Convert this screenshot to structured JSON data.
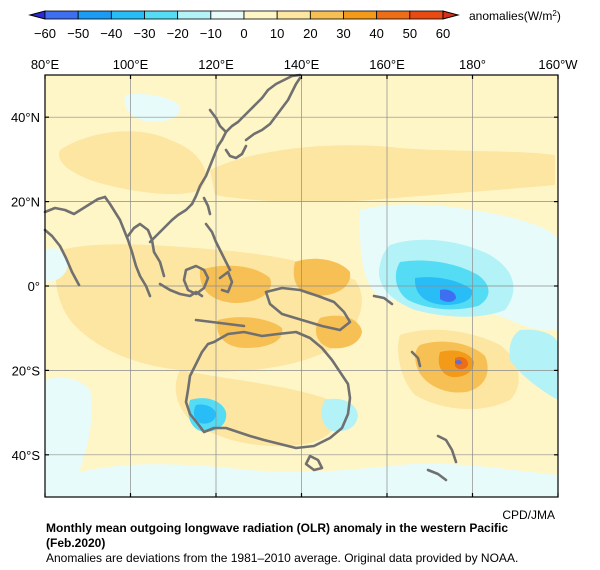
{
  "colorbar": {
    "ticks": [
      "−60",
      "−50",
      "−40",
      "−30",
      "−20",
      "−10",
      "0",
      "10",
      "20",
      "30",
      "40",
      "50",
      "60"
    ],
    "bins": [
      {
        "range": "<-60",
        "color": "#2a2ad8"
      },
      {
        "range": "-60..-50",
        "color": "#3d6ff0"
      },
      {
        "range": "-50..-40",
        "color": "#1a9cf5"
      },
      {
        "range": "-40..-30",
        "color": "#28bdf7"
      },
      {
        "range": "-30..-20",
        "color": "#55dcf5"
      },
      {
        "range": "-20..-10",
        "color": "#b3f2f7"
      },
      {
        "range": "-10..0",
        "color": "#e6fbfa"
      },
      {
        "range": "0..10",
        "color": "#fff6c8"
      },
      {
        "range": "10..20",
        "color": "#fce6a2"
      },
      {
        "range": "20..30",
        "color": "#f7c055"
      },
      {
        "range": "30..40",
        "color": "#f39a19"
      },
      {
        "range": "40..50",
        "color": "#ee6e17"
      },
      {
        "range": "50..60",
        "color": "#e84a12"
      },
      {
        "range": ">60",
        "color": "#d7301a"
      }
    ],
    "units_label": "anomalies(W/m",
    "units_sup": "2",
    "units_close": ")"
  },
  "map": {
    "lon_labels": [
      "80°E",
      "100°E",
      "120°E",
      "140°E",
      "160°E",
      "180°",
      "160°W"
    ],
    "lat_labels": [
      "40°N",
      "20°N",
      "0°",
      "20°S",
      "40°S"
    ],
    "lon_range": [
      80,
      200
    ],
    "lat_range": [
      -50,
      50
    ],
    "background_color": "#fff6c8",
    "coast_color": "#707070",
    "grid_color": "#8c8c8c"
  },
  "credit": "CPD/JMA",
  "caption": {
    "title_line1": "Monthly mean outgoing longwave radiation (OLR) anomaly in the western Pacific",
    "title_line2": "(Feb.2020)",
    "note": "Anomalies are deviations from the 1981–2010 average. Original data provided by NOAA."
  }
}
